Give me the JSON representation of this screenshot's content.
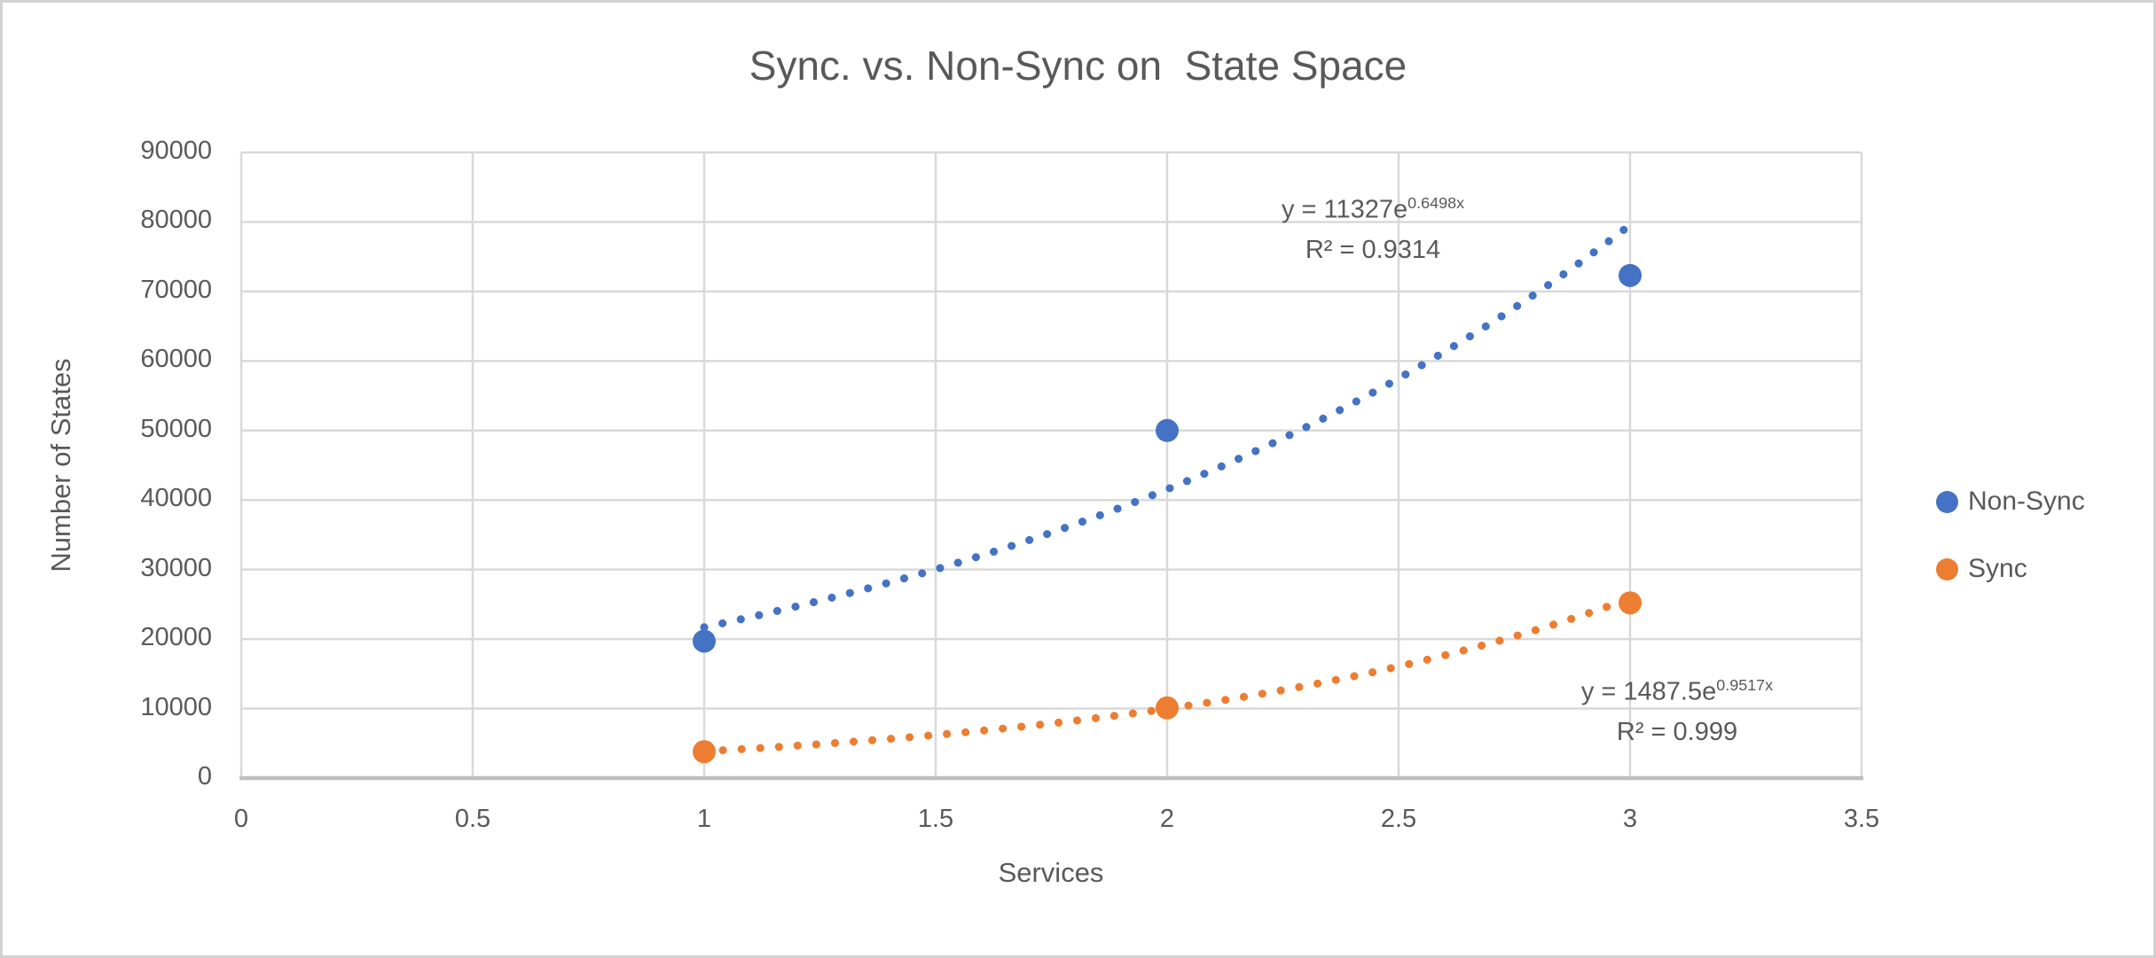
{
  "chart_data": {
    "type": "scatter",
    "title": "Sync. vs. Non-Sync on  State Space",
    "xlabel": "Services",
    "ylabel": "Number of States",
    "xlim": [
      0,
      3.5
    ],
    "ylim": [
      0,
      90000
    ],
    "grid": true,
    "legend_position": "right",
    "colors": {
      "text": "#595959",
      "gridline": "#D9D9D9",
      "axis_line": "#BFBFBF",
      "non_sync": "#4472C4",
      "sync": "#ED7D31"
    },
    "x_ticks": [
      {
        "label": "0",
        "value": 0
      },
      {
        "label": "0.5",
        "value": 0.5
      },
      {
        "label": "1",
        "value": 1
      },
      {
        "label": "1.5",
        "value": 1.5
      },
      {
        "label": "2",
        "value": 2
      },
      {
        "label": "2.5",
        "value": 2.5
      },
      {
        "label": "3",
        "value": 3
      },
      {
        "label": "3.5",
        "value": 3.5
      }
    ],
    "y_ticks": [
      {
        "label": "0",
        "value": 0
      },
      {
        "label": "10000",
        "value": 10000
      },
      {
        "label": "20000",
        "value": 20000
      },
      {
        "label": "30000",
        "value": 30000
      },
      {
        "label": "40000",
        "value": 40000
      },
      {
        "label": "50000",
        "value": 50000
      },
      {
        "label": "60000",
        "value": 60000
      },
      {
        "label": "70000",
        "value": 70000
      },
      {
        "label": "80000",
        "value": 80000
      },
      {
        "label": "90000",
        "value": 90000
      }
    ],
    "series": [
      {
        "name": "Non-Sync",
        "color": "#4472C4",
        "points": [
          {
            "x": 1,
            "y": 19700
          },
          {
            "x": 2,
            "y": 50000
          },
          {
            "x": 3,
            "y": 72300
          }
        ],
        "trendline": {
          "type": "exponential",
          "a": 11327,
          "b": 0.6498,
          "x_range": [
            1,
            3
          ],
          "style": "dotted",
          "equation_base": "y = 11327e",
          "equation_exponent": "0.6498x",
          "r2_label": "R² = 0.9314"
        }
      },
      {
        "name": "Sync",
        "color": "#ED7D31",
        "points": [
          {
            "x": 1,
            "y": 3800
          },
          {
            "x": 2,
            "y": 10100
          },
          {
            "x": 3,
            "y": 25200
          }
        ],
        "trendline": {
          "type": "exponential",
          "a": 1487.5,
          "b": 0.9517,
          "x_range": [
            1,
            3
          ],
          "style": "dotted",
          "equation_base": "y = 1487.5e",
          "equation_exponent": "0.9517x",
          "r2_label": "R² = 0.999"
        }
      }
    ]
  }
}
